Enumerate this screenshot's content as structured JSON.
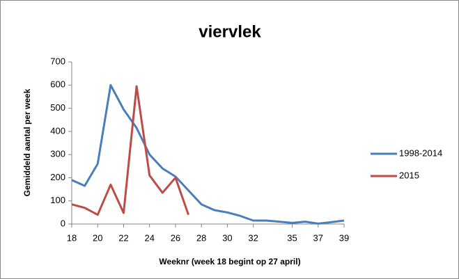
{
  "chart_data": {
    "type": "line",
    "title": "viervlek",
    "x_label": "Weeknr (week 18 begint op 27 april)",
    "y_label": "Gemiddeld aantal per week",
    "x": [
      18,
      19,
      20,
      21,
      22,
      23,
      24,
      25,
      26,
      27,
      28,
      29,
      30,
      31,
      32,
      33,
      34,
      35,
      36,
      37,
      38,
      39
    ],
    "series": [
      {
        "name": "1998-2014",
        "color": "#4a7ebb",
        "values": [
          190,
          165,
          260,
          600,
          495,
          415,
          300,
          240,
          205,
          145,
          85,
          60,
          50,
          35,
          15,
          15,
          10,
          5,
          10,
          2,
          8,
          15
        ]
      },
      {
        "name": "2015",
        "color": "#be4b48",
        "values": [
          85,
          70,
          40,
          170,
          48,
          595,
          210,
          135,
          200,
          40,
          null,
          null,
          null,
          null,
          null,
          null,
          null,
          null,
          null,
          null,
          null,
          null
        ]
      }
    ],
    "xlim": [
      18,
      39
    ],
    "xticks": [
      18,
      20,
      22,
      24,
      26,
      28,
      30,
      32,
      35,
      37,
      39
    ],
    "ylim": [
      0,
      700
    ],
    "yticks": [
      0,
      100,
      200,
      300,
      400,
      500,
      600,
      700
    ],
    "grid": false,
    "legend": "right"
  }
}
